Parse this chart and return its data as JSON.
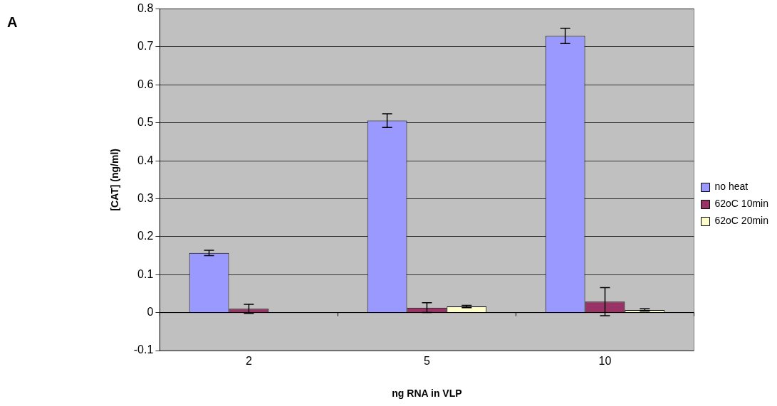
{
  "chart_data": {
    "type": "bar",
    "xlabel": "ng RNA in VLP",
    "ylabel": "[CAT] (ng/ml)",
    "annotations": [
      "A"
    ],
    "categories": [
      "2",
      "5",
      "10"
    ],
    "series": [
      {
        "name": "no heat",
        "color": "#9999ff",
        "values": [
          0.157,
          0.506,
          0.729
        ],
        "errors": [
          0.007,
          0.018,
          0.02
        ]
      },
      {
        "name": "62oC 10min",
        "color": "#993366",
        "values": [
          0.01,
          0.013,
          0.029
        ],
        "errors": [
          0.012,
          0.013,
          0.037
        ]
      },
      {
        "name": "62oC 20min",
        "color": "#ffffcc",
        "values": [
          0,
          0.016,
          0.007
        ],
        "errors": [
          null,
          0.003,
          0.003
        ]
      }
    ],
    "ylim": [
      -0.1,
      0.8
    ],
    "yticks": [
      -0.1,
      0,
      0.1,
      0.2,
      0.3,
      0.4,
      0.5,
      0.6,
      0.7,
      0.8
    ],
    "grid": "y",
    "legend": "right"
  }
}
